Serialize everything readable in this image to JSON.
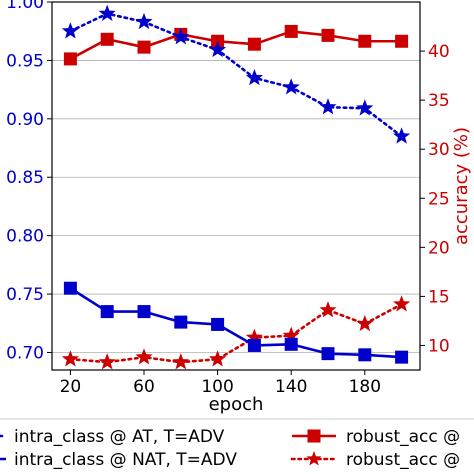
{
  "chart_data": {
    "type": "line",
    "x": [
      20,
      40,
      60,
      80,
      100,
      120,
      140,
      160,
      180,
      200
    ],
    "xlabel": "epoch",
    "xticks": [
      20,
      60,
      100,
      140,
      180
    ],
    "xlim": [
      10,
      210
    ],
    "left_axis": {
      "label": "",
      "color": "#0000cc",
      "ylim": [
        0.685,
        1.0
      ],
      "ticks": [
        "0.70",
        "0.75",
        "0.80",
        "0.85",
        "0.90",
        "0.95",
        "1.00"
      ]
    },
    "right_axis": {
      "label": "accuracy (%)",
      "color": "#cc0000",
      "ylim": [
        7.5,
        45.0
      ],
      "ticks": [
        "10",
        "15",
        "20",
        "25",
        "30",
        "35",
        "40"
      ]
    },
    "grid": "horizontal",
    "series": [
      {
        "name": "intra_class @ AT, T=ADV",
        "axis": "left",
        "color": "#0000cc",
        "line": "dotted",
        "marker": "star",
        "values": [
          0.975,
          0.99,
          0.983,
          0.97,
          0.959,
          0.935,
          0.927,
          0.91,
          0.909,
          0.885
        ]
      },
      {
        "name": "intra_class @ NAT, T=ADV",
        "axis": "left",
        "color": "#0000cc",
        "line": "solid",
        "marker": "square",
        "values": [
          0.755,
          0.735,
          0.735,
          0.726,
          0.724,
          0.706,
          0.707,
          0.699,
          0.698,
          0.696
        ]
      },
      {
        "name": "robust_acc @",
        "axis": "right",
        "color": "#cc0000",
        "line": "solid",
        "marker": "square",
        "values": [
          39.2,
          41.2,
          40.4,
          41.7,
          41.0,
          40.7,
          42.0,
          41.6,
          41.0,
          41.0
        ]
      },
      {
        "name": "robust_acc @",
        "axis": "right",
        "color": "#cc0000",
        "line": "dotted",
        "marker": "star",
        "values": [
          8.6,
          8.3,
          8.8,
          8.3,
          8.6,
          10.8,
          11.0,
          13.6,
          12.2,
          14.2
        ]
      }
    ],
    "legend": {
      "placement": "bottom",
      "entries": [
        "intra_class @ AT, T=ADV",
        "intra_class @ NAT, T=ADV",
        "robust_acc @",
        "robust_acc @"
      ]
    }
  }
}
